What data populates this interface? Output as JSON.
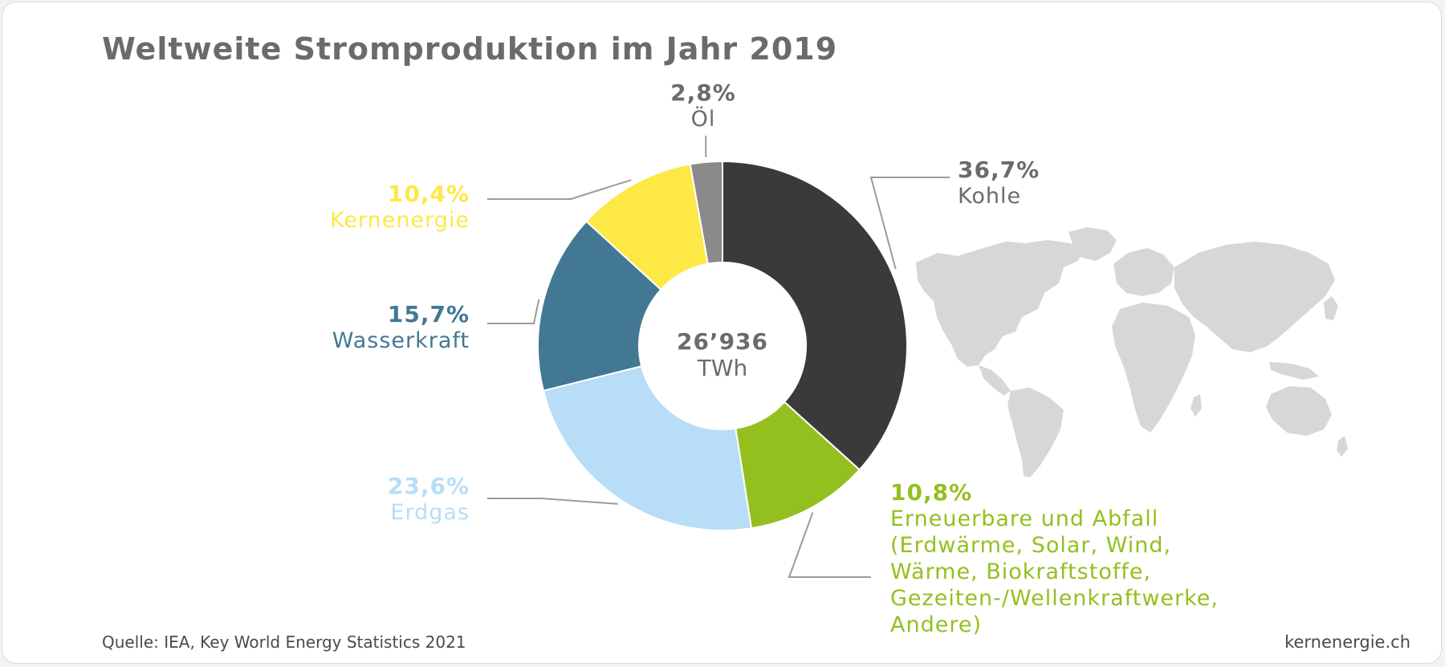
{
  "title": "Weltweite Stromproduktion im Jahr 2019",
  "source": "Quelle: IEA, Key World Energy Statistics 2021",
  "brand": "kernenergie.ch",
  "center": {
    "value": "26’936",
    "unit": "TWh"
  },
  "colors": {
    "kohle": "#3a3a3a",
    "erneuerbare": "#93c01f",
    "erdgas": "#b8ddf6",
    "wasserkraft": "#427893",
    "kernenergie": "#fde845",
    "oel": "#8a8a8a",
    "leader": "#9b9b9b",
    "map": "#d7d7d7"
  },
  "icons": {
    "map": "world-map-icon"
  },
  "chart_data": {
    "type": "pie",
    "donut": true,
    "title": "Weltweite Stromproduktion im Jahr 2019",
    "center_label": "26’936 TWh",
    "slices": [
      {
        "label": "Kohle",
        "value": 36.7,
        "display": "36,7%",
        "color": "#3a3a3a"
      },
      {
        "label": "Erneuerbare und Abfall (Erdwärme, Solar, Wind, Wärme, Biokraftstoffe, Gezeiten-/Wellenkraftwerke, Andere)",
        "value": 10.8,
        "display": "10,8%",
        "color": "#93c01f",
        "label_lines": [
          "Erneuerbare und Abfall",
          "(Erdwärme, Solar, Wind,",
          "Wärme, Biokraftstoffe,",
          "Gezeiten-/Wellenkraftwerke,",
          "Andere)"
        ]
      },
      {
        "label": "Erdgas",
        "value": 23.6,
        "display": "23,6%",
        "color": "#b8ddf6"
      },
      {
        "label": "Wasserkraft",
        "value": 15.7,
        "display": "15,7%",
        "color": "#427893"
      },
      {
        "label": "Kernenergie",
        "value": 10.4,
        "display": "10,4%",
        "color": "#fde845"
      },
      {
        "label": "Öl",
        "value": 2.8,
        "display": "2,8%",
        "color": "#8a8a8a"
      }
    ],
    "legend": "none"
  }
}
